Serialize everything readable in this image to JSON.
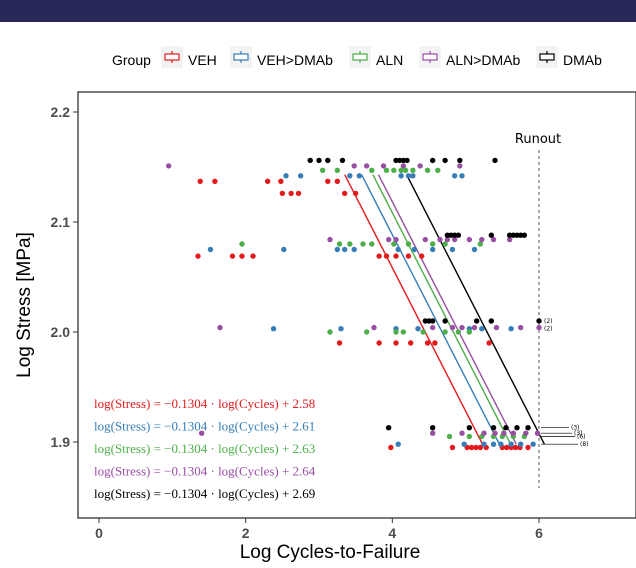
{
  "header": {
    "bar_color": "#27275a"
  },
  "chart_data": {
    "type": "scatter",
    "title": "",
    "xlabel": "Log Cycles-to-Failure",
    "ylabel": "Log Stress [MPa]",
    "xlim": [
      -0.3,
      7.3
    ],
    "ylim": [
      1.843,
      2.225
    ],
    "x_ticks": [
      "0",
      "2",
      "4",
      "6"
    ],
    "y_ticks": [
      "1.9",
      "2.0",
      "2.1",
      "2.2"
    ],
    "grid": false,
    "legend": {
      "title": "Group",
      "position": "top",
      "labels": [
        "VEH",
        "VEH>DMAb",
        "ALN",
        "ALN>DMAb",
        "DMAb"
      ]
    },
    "runout": {
      "x": 6.0,
      "label": "Runout"
    },
    "series": [
      {
        "name": "VEH",
        "color": "#e41a1c",
        "fit": {
          "slope": -0.1304,
          "intercept": 2.58
        },
        "points": [
          [
            1.38,
            2.137
          ],
          [
            1.58,
            2.137
          ],
          [
            2.3,
            2.137
          ],
          [
            2.48,
            2.137
          ],
          [
            2.5,
            2.126
          ],
          [
            2.62,
            2.126
          ],
          [
            2.72,
            2.126
          ],
          [
            3.12,
            2.137
          ],
          [
            3.25,
            2.137
          ],
          [
            3.35,
            2.126
          ],
          [
            3.5,
            2.126
          ],
          [
            1.35,
            2.069
          ],
          [
            1.82,
            2.069
          ],
          [
            1.95,
            2.069
          ],
          [
            2.1,
            2.069
          ],
          [
            3.82,
            2.069
          ],
          [
            3.92,
            2.069
          ],
          [
            4.05,
            2.069
          ],
          [
            4.22,
            2.069
          ],
          [
            4.4,
            2.069
          ],
          [
            3.28,
            1.99
          ],
          [
            3.82,
            1.99
          ],
          [
            4.05,
            1.99
          ],
          [
            4.25,
            1.99
          ],
          [
            4.48,
            1.99
          ],
          [
            4.58,
            1.99
          ],
          [
            5.32,
            1.99
          ],
          [
            3.98,
            1.895
          ],
          [
            4.82,
            1.895
          ],
          [
            5.02,
            1.895
          ],
          [
            5.08,
            1.895
          ],
          [
            5.14,
            1.895
          ],
          [
            5.2,
            1.895
          ],
          [
            5.28,
            1.895
          ],
          [
            5.5,
            1.895
          ],
          [
            5.56,
            1.895
          ],
          [
            5.62,
            1.895
          ],
          [
            5.68,
            1.895
          ],
          [
            5.74,
            1.895
          ],
          [
            5.85,
            1.895
          ]
        ]
      },
      {
        "name": "VEH>DMAb",
        "color": "#377eb8",
        "fit": {
          "slope": -0.1304,
          "intercept": 2.61
        },
        "points": [
          [
            2.55,
            2.142
          ],
          [
            2.75,
            2.142
          ],
          [
            3.42,
            2.142
          ],
          [
            3.55,
            2.142
          ],
          [
            4.12,
            2.142
          ],
          [
            4.22,
            2.142
          ],
          [
            4.28,
            2.142
          ],
          [
            4.85,
            2.142
          ],
          [
            4.95,
            2.142
          ],
          [
            1.52,
            2.075
          ],
          [
            2.52,
            2.075
          ],
          [
            3.25,
            2.075
          ],
          [
            3.35,
            2.075
          ],
          [
            3.48,
            2.075
          ],
          [
            4.08,
            2.075
          ],
          [
            4.3,
            2.075
          ],
          [
            4.55,
            2.075
          ],
          [
            4.82,
            2.075
          ],
          [
            5.12,
            2.075
          ],
          [
            2.38,
            2.003
          ],
          [
            3.3,
            2.003
          ],
          [
            4.05,
            2.003
          ],
          [
            4.35,
            2.003
          ],
          [
            5.05,
            2.003
          ],
          [
            5.22,
            2.003
          ],
          [
            5.62,
            2.003
          ],
          [
            4.08,
            1.898
          ],
          [
            4.98,
            1.898
          ],
          [
            5.25,
            1.898
          ],
          [
            5.38,
            1.898
          ],
          [
            5.48,
            1.898
          ],
          [
            5.62,
            1.898
          ],
          [
            5.75,
            1.898
          ],
          [
            5.92,
            1.898
          ]
        ]
      },
      {
        "name": "ALN",
        "color": "#4daf4a",
        "fit": {
          "slope": -0.1304,
          "intercept": 2.63
        },
        "points": [
          [
            3.05,
            2.147
          ],
          [
            3.25,
            2.147
          ],
          [
            3.72,
            2.147
          ],
          [
            3.92,
            2.147
          ],
          [
            4.02,
            2.147
          ],
          [
            4.12,
            2.147
          ],
          [
            4.18,
            2.147
          ],
          [
            4.28,
            2.147
          ],
          [
            4.48,
            2.147
          ],
          [
            4.62,
            2.147
          ],
          [
            1.95,
            2.08
          ],
          [
            3.28,
            2.08
          ],
          [
            3.42,
            2.08
          ],
          [
            3.6,
            2.08
          ],
          [
            3.72,
            2.08
          ],
          [
            4.02,
            2.08
          ],
          [
            4.22,
            2.08
          ],
          [
            4.55,
            2.08
          ],
          [
            4.72,
            2.08
          ],
          [
            5.2,
            2.08
          ],
          [
            3.15,
            2.0
          ],
          [
            3.65,
            2.0
          ],
          [
            4.05,
            2.0
          ],
          [
            4.15,
            2.0
          ],
          [
            4.42,
            2.0
          ],
          [
            4.72,
            2.0
          ],
          [
            4.9,
            2.0
          ],
          [
            5.05,
            2.0
          ],
          [
            4.78,
            1.905
          ],
          [
            5.05,
            1.905
          ],
          [
            5.22,
            1.905
          ],
          [
            5.38,
            1.905
          ],
          [
            5.5,
            1.905
          ],
          [
            5.65,
            1.905
          ],
          [
            5.8,
            1.905
          ]
        ]
      },
      {
        "name": "ALN>DMAb",
        "color": "#984ea3",
        "fit": {
          "slope": -0.1304,
          "intercept": 2.64
        },
        "points": [
          [
            0.95,
            2.151
          ],
          [
            3.48,
            2.151
          ],
          [
            3.65,
            2.151
          ],
          [
            3.88,
            2.151
          ],
          [
            4.15,
            2.151
          ],
          [
            4.38,
            2.151
          ],
          [
            4.92,
            2.151
          ],
          [
            3.15,
            2.084
          ],
          [
            3.95,
            2.084
          ],
          [
            4.05,
            2.084
          ],
          [
            4.45,
            2.084
          ],
          [
            4.65,
            2.084
          ],
          [
            4.75,
            2.084
          ],
          [
            4.85,
            2.084
          ],
          [
            5.05,
            2.084
          ],
          [
            5.22,
            2.084
          ],
          [
            5.38,
            2.084
          ],
          [
            5.6,
            2.084
          ],
          [
            1.65,
            2.004
          ],
          [
            3.75,
            2.004
          ],
          [
            4.55,
            2.004
          ],
          [
            4.82,
            2.004
          ],
          [
            4.95,
            2.004
          ],
          [
            5.12,
            2.004
          ],
          [
            5.42,
            2.004
          ],
          [
            5.75,
            2.004
          ],
          [
            6.0,
            2.004
          ],
          [
            1.4,
            1.908
          ],
          [
            4.55,
            1.908
          ],
          [
            4.95,
            1.908
          ],
          [
            5.25,
            1.908
          ],
          [
            5.4,
            1.908
          ],
          [
            5.52,
            1.908
          ],
          [
            5.65,
            1.908
          ],
          [
            5.82,
            1.908
          ],
          [
            5.98,
            1.908
          ]
        ]
      },
      {
        "name": "DMAb",
        "color": "#000000",
        "fit": {
          "slope": -0.1304,
          "intercept": 2.69
        },
        "points": [
          [
            2.88,
            2.156
          ],
          [
            3.0,
            2.156
          ],
          [
            3.12,
            2.156
          ],
          [
            3.32,
            2.156
          ],
          [
            4.05,
            2.156
          ],
          [
            4.1,
            2.156
          ],
          [
            4.15,
            2.156
          ],
          [
            4.2,
            2.156
          ],
          [
            4.55,
            2.156
          ],
          [
            4.72,
            2.156
          ],
          [
            4.92,
            2.156
          ],
          [
            5.4,
            2.156
          ],
          [
            4.75,
            2.088
          ],
          [
            4.8,
            2.088
          ],
          [
            4.85,
            2.088
          ],
          [
            4.9,
            2.088
          ],
          [
            5.35,
            2.088
          ],
          [
            5.6,
            2.088
          ],
          [
            5.65,
            2.088
          ],
          [
            5.7,
            2.088
          ],
          [
            5.75,
            2.088
          ],
          [
            5.8,
            2.088
          ],
          [
            4.45,
            2.01
          ],
          [
            4.5,
            2.01
          ],
          [
            4.55,
            2.01
          ],
          [
            4.72,
            2.01
          ],
          [
            5.15,
            2.01
          ],
          [
            5.35,
            2.01
          ],
          [
            6.0,
            2.01
          ],
          [
            3.95,
            1.913
          ],
          [
            4.55,
            1.913
          ],
          [
            5.05,
            1.913
          ],
          [
            5.38,
            1.913
          ],
          [
            5.55,
            1.913
          ],
          [
            5.7,
            1.913
          ],
          [
            5.85,
            1.913
          ]
        ]
      }
    ],
    "equations": [
      {
        "text": "log(Stress) = −0.1304 · log(Cycles) + 2.58",
        "color": "#e41a1c"
      },
      {
        "text": "log(Stress) = −0.1304 · log(Cycles) + 2.61",
        "color": "#377eb8"
      },
      {
        "text": "log(Stress) = −0.1304 · log(Cycles) + 2.63",
        "color": "#4daf4a"
      },
      {
        "text": "log(Stress) = −0.1304 · log(Cycles) + 2.64",
        "color": "#984ea3"
      },
      {
        "text": "log(Stress) = −0.1304 · log(Cycles) + 2.69",
        "color": "#000000"
      }
    ],
    "runout_counts": [
      {
        "label": "(2)",
        "y": 2.01
      },
      {
        "label": "(2)",
        "y": 2.003
      },
      {
        "label": "(3)",
        "y": 1.913
      },
      {
        "label": "(3)",
        "y": 1.908
      },
      {
        "label": "(6)",
        "y": 1.905
      },
      {
        "label": "(8)",
        "y": 1.898
      }
    ]
  }
}
